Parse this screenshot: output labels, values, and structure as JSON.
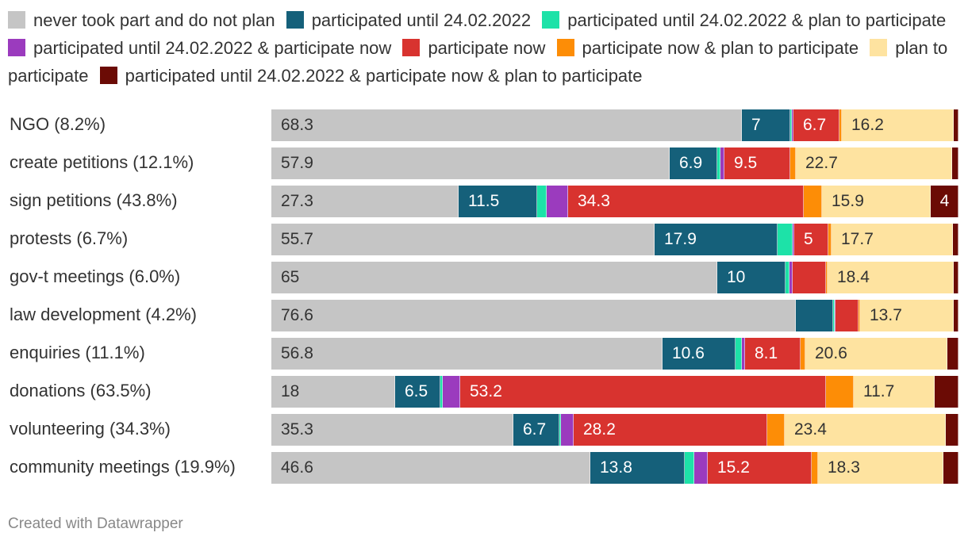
{
  "legend": [
    {
      "label": "never took part and do not plan",
      "color": "#c5c5c5"
    },
    {
      "label": "participated until 24.02.2022",
      "color": "#15607a"
    },
    {
      "label": "participated until 24.02.2022 & plan to participate",
      "color": "#1de2a8"
    },
    {
      "label": "participated until 24.02.2022 & participate now",
      "color": "#9b3bbe"
    },
    {
      "label": "participate now",
      "color": "#d8332f"
    },
    {
      "label": "participate now & plan to participate",
      "color": "#fd8d06"
    },
    {
      "label": "plan to participate",
      "color": "#fee3a0"
    },
    {
      "label": "participated until 24.02.2022 & participate now & plan to participate",
      "color": "#6b0b05"
    }
  ],
  "chart_data": {
    "type": "bar",
    "orientation": "horizontal",
    "stacked": true,
    "normalized_to": 100,
    "legend_position": "top",
    "categories": [
      "NGO (8.2%)",
      "create petitions (12.1%)",
      "sign petitions (43.8%)",
      "protests (6.7%)",
      "gov-t meetings (6.0%)",
      "law development (4.2%)",
      "enquiries (11.1%)",
      "donations (63.5%)",
      "volunteering (34.3%)",
      "community meetings (19.9%)"
    ],
    "series": [
      {
        "name": "never took part and do not plan",
        "values": [
          68.3,
          57.9,
          27.3,
          55.7,
          65,
          76.6,
          56.8,
          18,
          35.3,
          46.6
        ],
        "labels": [
          "68.3",
          "57.9",
          "27.3",
          "55.7",
          "65",
          "76.6",
          "56.8",
          "18",
          "35.3",
          "46.6"
        ]
      },
      {
        "name": "participated until 24.02.2022",
        "values": [
          7,
          6.9,
          11.5,
          17.9,
          10,
          5.4,
          10.6,
          6.5,
          6.7,
          13.8
        ],
        "labels": [
          "7",
          "6.9",
          "11.5",
          "17.9",
          "10",
          "",
          "10.6",
          "6.5",
          "6.7",
          "13.8"
        ]
      },
      {
        "name": "participated until 24.02.2022 & plan to participate",
        "values": [
          0.2,
          0.5,
          1.4,
          2.2,
          0.6,
          0.2,
          0.9,
          0.4,
          0.2,
          1.4
        ],
        "labels": [
          "",
          "",
          "",
          "",
          "",
          "",
          "",
          "",
          "",
          ""
        ]
      },
      {
        "name": "participated until 24.02.2022 & participate now",
        "values": [
          0.2,
          0.6,
          3.1,
          0.2,
          0.4,
          0.1,
          0.4,
          2.5,
          1.9,
          2.0
        ],
        "labels": [
          "",
          "",
          "",
          "",
          "",
          "",
          "",
          "",
          "",
          ""
        ]
      },
      {
        "name": "participate now",
        "values": [
          6.7,
          9.5,
          34.3,
          5,
          4.9,
          3.4,
          8.1,
          53.2,
          28.2,
          15.2
        ],
        "labels": [
          "6.7",
          "9.5",
          "34.3",
          "5",
          "",
          "",
          "8.1",
          "53.2",
          "28.2",
          "15.2"
        ]
      },
      {
        "name": "participate now & plan to participate",
        "values": [
          0.4,
          0.9,
          2.7,
          0.4,
          0.2,
          0.2,
          0.7,
          4.0,
          2.6,
          0.9
        ],
        "labels": [
          "",
          "",
          "",
          "",
          "",
          "",
          "",
          "",
          "",
          ""
        ]
      },
      {
        "name": "plan to participate",
        "values": [
          16.2,
          22.7,
          15.9,
          17.7,
          18.4,
          13.7,
          20.6,
          11.7,
          23.4,
          18.3
        ],
        "labels": [
          "16.2",
          "22.7",
          "15.9",
          "17.7",
          "18.4",
          "13.7",
          "20.6",
          "11.7",
          "23.4",
          "18.3"
        ]
      },
      {
        "name": "participated until 24.02.2022 & participate now & plan to participate",
        "values": [
          0.7,
          0.9,
          4,
          0.8,
          0.7,
          0.7,
          1.6,
          3.5,
          1.9,
          2.2
        ],
        "labels": [
          "",
          "",
          "4",
          "",
          "",
          "",
          "",
          "",
          "",
          ""
        ]
      }
    ]
  },
  "footer": "Created with Datawrapper"
}
